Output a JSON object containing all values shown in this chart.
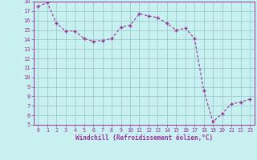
{
  "x": [
    0,
    1,
    2,
    3,
    4,
    5,
    6,
    7,
    8,
    9,
    10,
    11,
    12,
    13,
    14,
    15,
    16,
    17,
    18,
    19,
    20,
    21,
    22,
    23
  ],
  "y": [
    17.5,
    17.9,
    15.7,
    14.9,
    14.9,
    14.1,
    13.8,
    13.9,
    14.1,
    15.3,
    15.5,
    16.7,
    16.5,
    16.3,
    15.7,
    15.0,
    15.2,
    14.1,
    8.6,
    5.3,
    6.2,
    7.2,
    7.4,
    7.7
  ],
  "line_color": "#993399",
  "marker": "+",
  "bg_color": "#c8f0f0",
  "grid_color": "#99cccc",
  "xlabel": "Windchill (Refroidissement éolien,°C)",
  "xlabel_color": "#993399",
  "tick_color": "#993399",
  "ylim": [
    5,
    18
  ],
  "xlim": [
    -0.5,
    23.5
  ],
  "yticks": [
    5,
    6,
    7,
    8,
    9,
    10,
    11,
    12,
    13,
    14,
    15,
    16,
    17,
    18
  ],
  "xticks": [
    0,
    1,
    2,
    3,
    4,
    5,
    6,
    7,
    8,
    9,
    10,
    11,
    12,
    13,
    14,
    15,
    16,
    17,
    18,
    19,
    20,
    21,
    22,
    23
  ]
}
